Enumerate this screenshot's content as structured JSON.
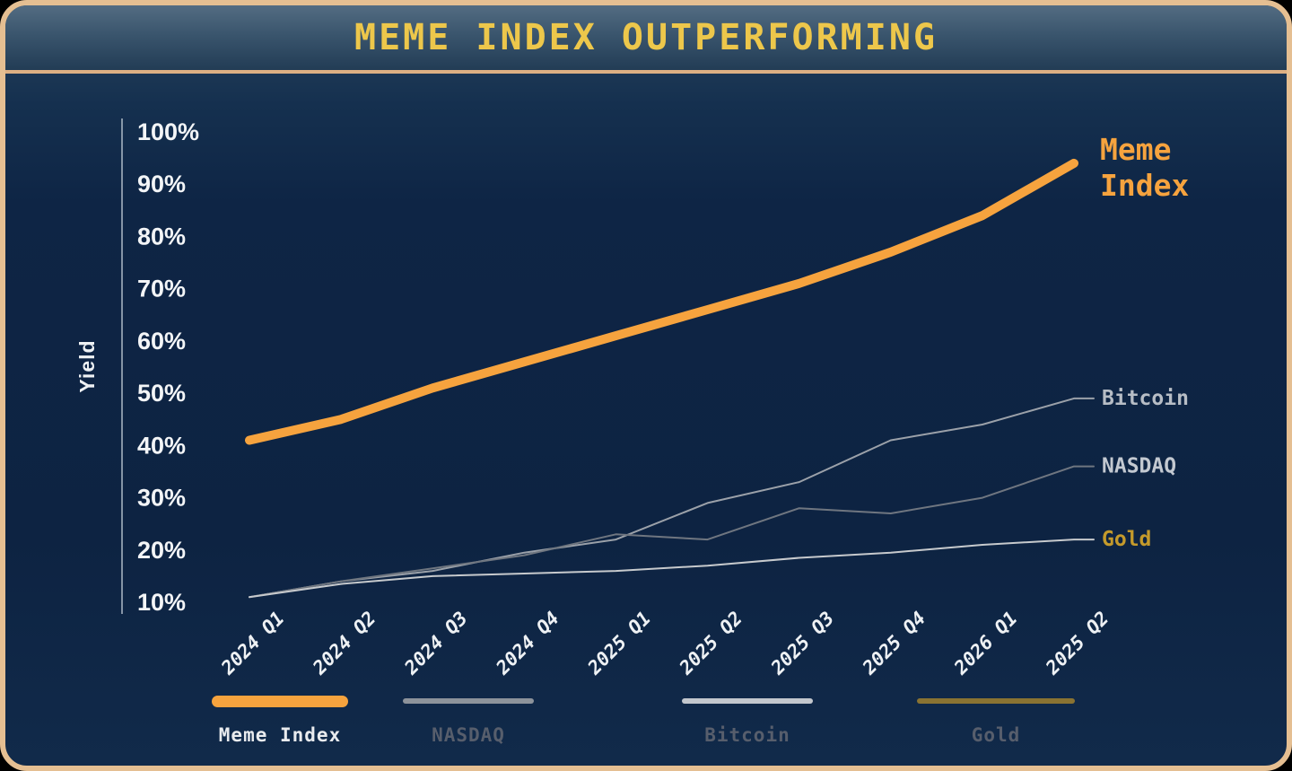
{
  "header": {
    "title": "MEME INDEX OUTPERFORMING"
  },
  "chart_data": {
    "type": "line",
    "title": "MEME INDEX OUTPERFORMING",
    "xlabel": "",
    "ylabel": "Yield",
    "ylim": [
      10,
      100
    ],
    "grid": false,
    "legend_position": "bottom",
    "y_tick_labels": [
      "100%",
      "90%",
      "80%",
      "70%",
      "60%",
      "50%",
      "40%",
      "30%",
      "20%",
      "10%"
    ],
    "y_tick_values": [
      100,
      90,
      80,
      70,
      60,
      50,
      40,
      30,
      20,
      10
    ],
    "categories": [
      "2024 Q1",
      "2024 Q2",
      "2024 Q3",
      "2024 Q4",
      "2025 Q1",
      "2025 Q2",
      "2025 Q3",
      "2025 Q4",
      "2026 Q1",
      "2025 Q2"
    ],
    "series": [
      {
        "name": "Meme Index",
        "color": "#f6a33e",
        "line_width": 10,
        "label_color": "#f6a33e",
        "label_lines": [
          "Meme",
          "Index"
        ],
        "values": [
          41,
          45,
          51,
          56,
          61,
          66,
          71,
          77,
          84,
          94
        ]
      },
      {
        "name": "Bitcoin",
        "color": "#9ba1a9",
        "line_width": 2,
        "label_color": "#b7bdc5",
        "label_lines": [
          "Bitcoin"
        ],
        "values": [
          11,
          14,
          16,
          19.5,
          22,
          29,
          33,
          41,
          44,
          49
        ]
      },
      {
        "name": "NASDAQ",
        "color": "#6f7680",
        "line_width": 2,
        "label_color": "#c3c9d1",
        "label_lines": [
          "NASDAQ"
        ],
        "values": [
          11,
          14,
          16.5,
          19,
          23,
          22,
          28,
          27,
          30,
          36
        ]
      },
      {
        "name": "Gold",
        "color": "#c7cacd",
        "line_width": 2,
        "label_color": "#c49a2b",
        "label_lines": [
          "Gold"
        ],
        "values": [
          11,
          13.5,
          15,
          15.5,
          16,
          17,
          18.5,
          19.5,
          21,
          22
        ]
      }
    ]
  },
  "legend": {
    "items": [
      {
        "label": "Meme Index",
        "chip_color": "#f6a33e",
        "active": true
      },
      {
        "label": "NASDAQ",
        "chip_color": "#8d939b",
        "active": false
      },
      {
        "label": "Bitcoin",
        "chip_color": "#c3c7cd",
        "active": false
      },
      {
        "label": "Gold",
        "chip_color": "#8a7332",
        "active": false
      }
    ],
    "active_text_color": "#e9ebee",
    "inactive_text_color": "#575e6c"
  }
}
